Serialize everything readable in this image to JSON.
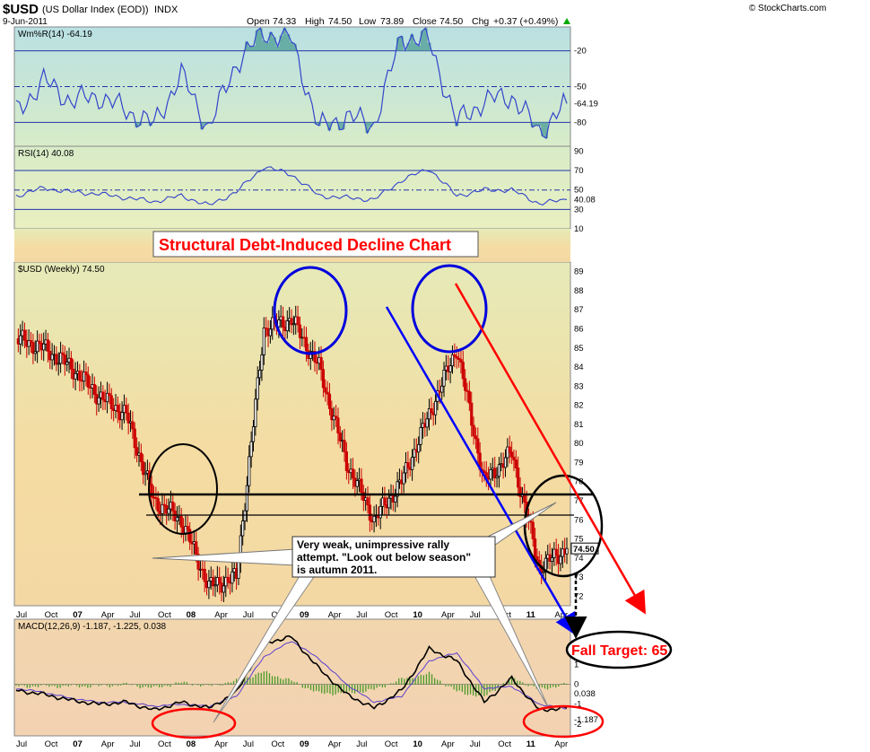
{
  "header": {
    "symbol": "$USD",
    "name": "(US Dollar Index (EOD))",
    "exchange": "INDX",
    "date": "9-Jun-2011",
    "open_label": "Open",
    "open": "74.33",
    "high_label": "High",
    "high": "74.50",
    "low_label": "Low",
    "low": "73.89",
    "close_label": "Close",
    "close": "74.50",
    "chg_label": "Chg",
    "chg": "+0.37 (+0.49%)",
    "copyright": "© StockCharts.com"
  },
  "colors": {
    "up": "#000000",
    "down": "#cc0000",
    "indicator_line": "#3344cc",
    "fill_teal": "#5fa8a0",
    "annotation_red": "#ff0000",
    "annotation_blue": "#0000ff"
  },
  "chart_data": [
    {
      "type": "line",
      "name_label": "Wm%R(14) -64.19",
      "ylim": [
        -100,
        0
      ],
      "yticks": [
        -20,
        -50,
        -80
      ],
      "last_value": "-64.19",
      "reference_lines": [
        -20,
        -50,
        -80
      ],
      "x": [
        "Jul 06",
        "Oct 06",
        "Jan 07",
        "Apr 07",
        "Jul 07",
        "Oct 07",
        "Jan 08",
        "Apr 08",
        "Jul 08",
        "Oct 08",
        "Jan 09",
        "Apr 09",
        "Jul 09",
        "Oct 09",
        "Jan 10",
        "Apr 10",
        "Jul 10",
        "Oct 10",
        "Jan 11",
        "Apr 11",
        "Jun 11"
      ],
      "values": [
        -72,
        -45,
        -62,
        -58,
        -70,
        -82,
        -40,
        -85,
        -30,
        -5,
        -10,
        -85,
        -75,
        -82,
        -8,
        -12,
        -80,
        -62,
        -58,
        -88,
        -64.19
      ]
    },
    {
      "type": "line",
      "name_label": "RSI(14) 40.08",
      "ylim": [
        10,
        95
      ],
      "yticks": [
        90,
        70,
        50,
        30,
        10
      ],
      "last_value": "40.08",
      "reference_lines": [
        70,
        50,
        30
      ],
      "x": [
        "Jul 06",
        "Oct 06",
        "Jan 07",
        "Apr 07",
        "Jul 07",
        "Oct 07",
        "Jan 08",
        "Apr 08",
        "Jul 08",
        "Oct 08",
        "Jan 09",
        "Apr 09",
        "Jul 09",
        "Oct 09",
        "Jan 10",
        "Apr 10",
        "Jul 10",
        "Oct 10",
        "Jan 11",
        "Apr 11",
        "Jun 11"
      ],
      "values": [
        44,
        52,
        48,
        46,
        42,
        38,
        44,
        34,
        48,
        74,
        66,
        44,
        42,
        40,
        60,
        72,
        44,
        50,
        50,
        36,
        40.08
      ]
    },
    {
      "type": "candlestick",
      "name_label": "$USD (Weekly) 74.50",
      "ylim": [
        71.5,
        89.5
      ],
      "yticks": [
        89,
        88,
        87,
        86,
        85,
        84,
        83,
        82,
        81,
        80,
        79,
        78,
        77,
        76,
        75,
        74,
        73,
        72
      ],
      "last_value": "74.50",
      "x": [
        "Jul 06",
        "Oct 06",
        "Jan 07",
        "Apr 07",
        "Jul 07",
        "Oct 07",
        "Jan 08",
        "Apr 08",
        "Jul 08",
        "Oct 08",
        "Jan 09",
        "Apr 09",
        "Jul 09",
        "Oct 09",
        "Jan 10",
        "Apr 10",
        "Jul 10",
        "Oct 10",
        "Jan 11",
        "Apr 11",
        "Jun 11"
      ],
      "values": [
        85.5,
        85.0,
        84.0,
        82.5,
        81.5,
        77.0,
        76.0,
        72.5,
        73.0,
        86.0,
        86.5,
        84.0,
        79.0,
        76.0,
        78.0,
        81.5,
        85.0,
        78.0,
        79.5,
        73.5,
        74.5
      ],
      "horizontal_levels": [
        76.5,
        75.8
      ]
    },
    {
      "type": "line",
      "name_label": "MACD(12,26,9) -1.187, -1.225, 0.038",
      "ylim": [
        -2.6,
        3.3
      ],
      "yticks": [
        3,
        2,
        1,
        0,
        -1,
        -2
      ],
      "last_values": [
        "0.038",
        "-1.187"
      ],
      "x": [
        "Jul 06",
        "Oct 06",
        "Jan 07",
        "Apr 07",
        "Jul 07",
        "Oct 07",
        "Jan 08",
        "Apr 08",
        "Jul 08",
        "Oct 08",
        "Jan 09",
        "Apr 09",
        "Jul 09",
        "Oct 09",
        "Jan 10",
        "Apr 10",
        "Jul 10",
        "Oct 10",
        "Jan 11",
        "Apr 11",
        "Jun 11"
      ],
      "series": [
        {
          "values": [
            -0.3,
            -0.5,
            -0.8,
            -1.0,
            -0.9,
            -1.3,
            -0.9,
            -1.2,
            -0.4,
            2.1,
            2.4,
            0.8,
            -0.5,
            -1.2,
            -0.3,
            1.8,
            1.2,
            -0.9,
            0.3,
            -1.3,
            -1.187
          ]
        },
        {
          "values": [
            -0.2,
            -0.4,
            -0.7,
            -0.9,
            -0.9,
            -1.1,
            -1.0,
            -1.1,
            -0.6,
            1.4,
            2.2,
            1.3,
            0.0,
            -0.9,
            -0.6,
            1.2,
            1.6,
            -0.2,
            -0.1,
            -1.0,
            -1.225
          ]
        }
      ]
    }
  ],
  "x_axis_labels": [
    "Jul",
    "Oct",
    "07",
    "Apr",
    "Jul",
    "Oct",
    "08",
    "Apr",
    "Jul",
    "Oct",
    "09",
    "Apr",
    "Jul",
    "Oct",
    "10",
    "Apr",
    "Jul",
    "Oct",
    "11",
    "Apr"
  ],
  "annotations": {
    "title": "Structural Debt-Induced Decline Chart",
    "callout_text_1": "Very weak, unimpressive rally",
    "callout_text_2": "attempt. \"Look out below season\"",
    "callout_text_3": "is autumn 2011.",
    "target": "Fall Target: 65"
  }
}
